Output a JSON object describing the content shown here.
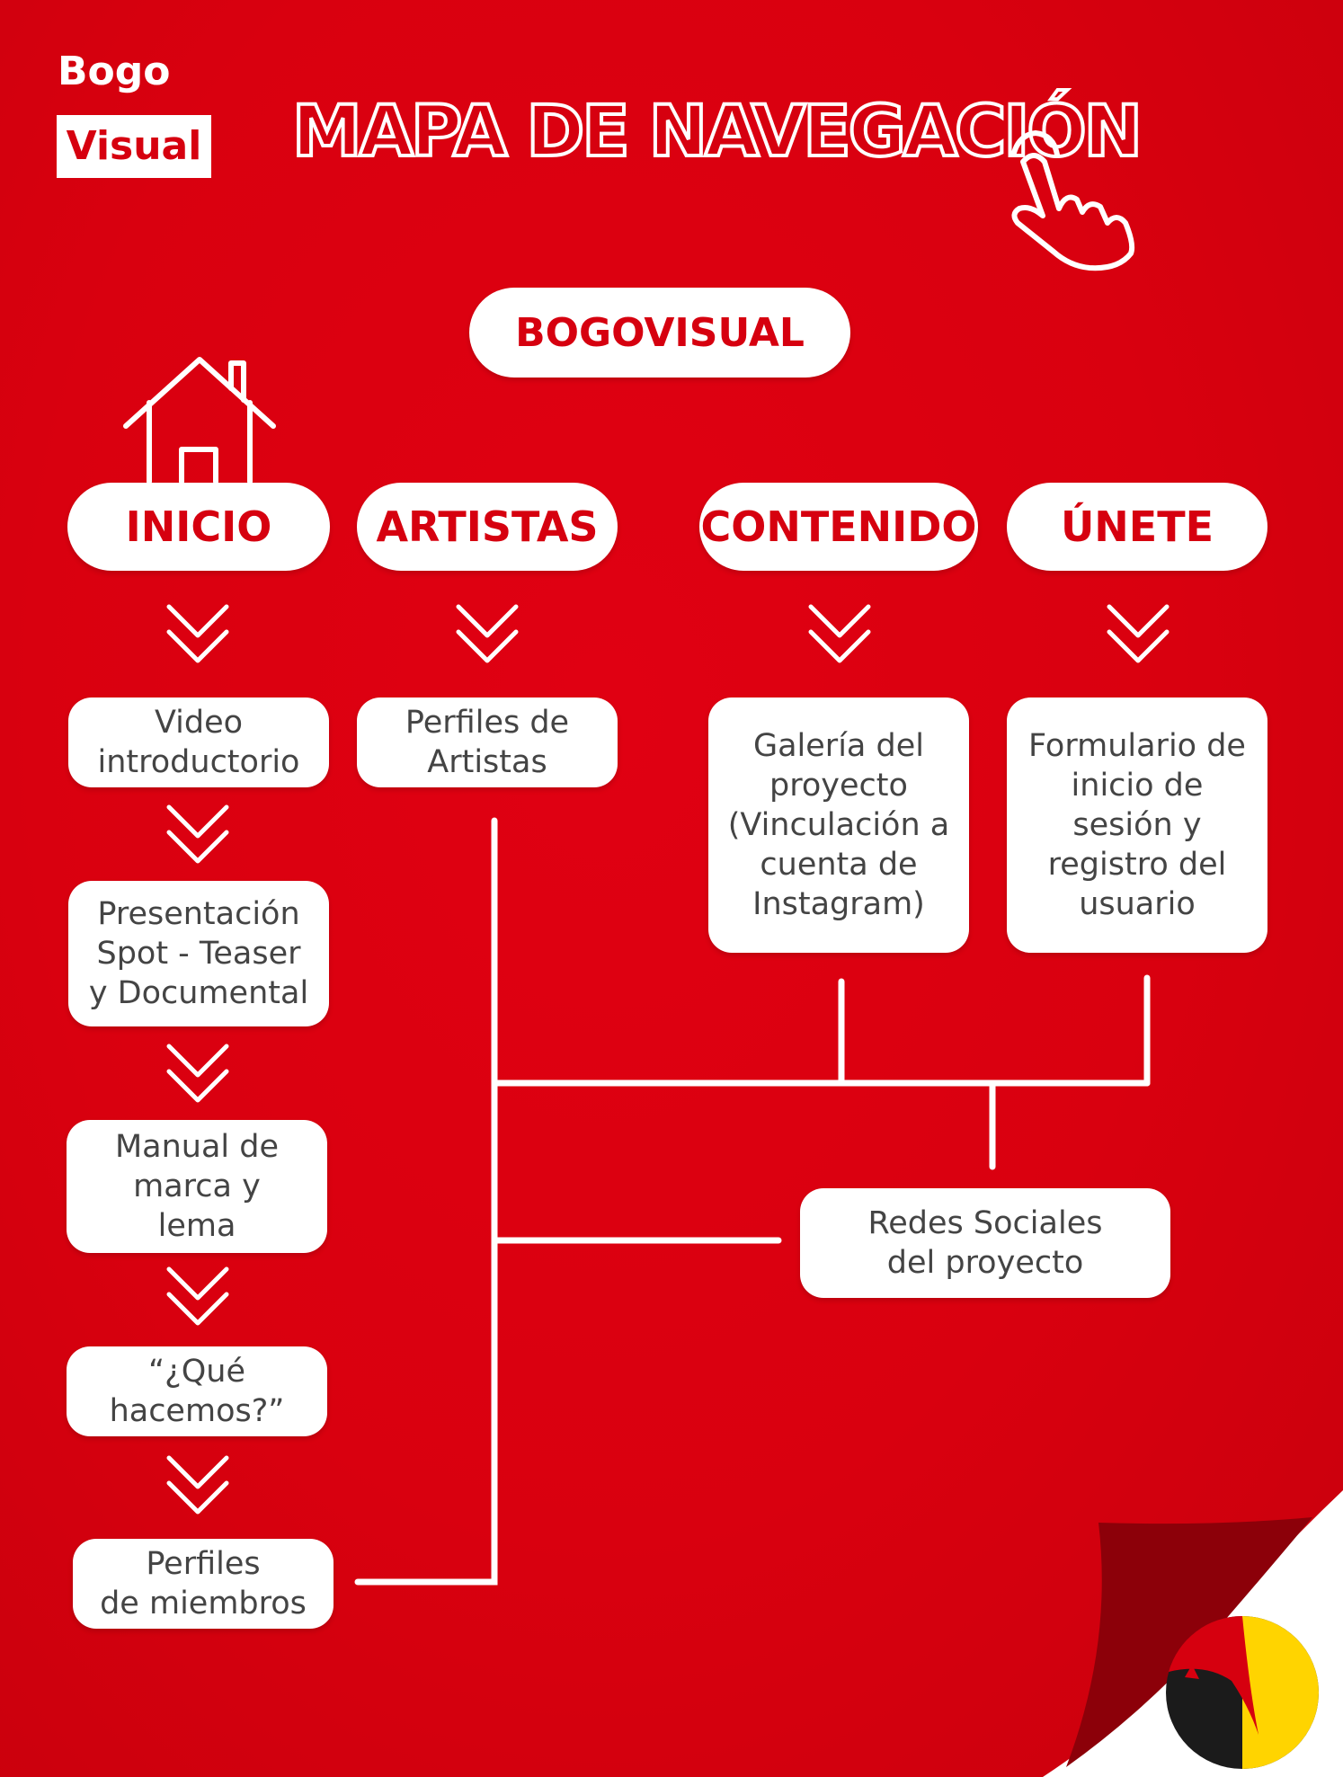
{
  "brand": {
    "logo_top": "Bogo",
    "logo_bottom": "Visual",
    "title": "MAPA DE NAVEGACIÓN"
  },
  "root": {
    "label": "BOGOVISUAL"
  },
  "sections": {
    "inicio": "INICIO",
    "artistas": "ARTISTAS",
    "contenido": "CONTENIDO",
    "unete": "ÚNETE"
  },
  "inicio_pages": {
    "video": "Video\nintroductorio",
    "presentacion": "Presentación\nSpot - Teaser\ny Documental",
    "manual": "Manual de\nmarca y\nlema",
    "que_hacemos": "“¿Qué\nhacemos?”",
    "miembros": "Perfiles\nde miembros"
  },
  "artistas_pages": {
    "perfiles": "Perfiles de\nArtistas"
  },
  "contenido_pages": {
    "galeria": "Galería del\nproyecto\n(Vinculación a\ncuenta de\nInstagram)"
  },
  "unete_pages": {
    "formulario": "Formulario de\ninicio de\nsesión y\nregistro del\nusuario"
  },
  "shared": {
    "redes": "Redes Sociales\ndel proyecto"
  },
  "icons": [
    "house-icon",
    "pointer-hand-icon",
    "chevron-double-down-icon",
    "corner-emblem-icon"
  ],
  "colors": {
    "background": "#d9000f",
    "accent": "#d6000f",
    "box": "#ffffff",
    "text": "#444444"
  }
}
